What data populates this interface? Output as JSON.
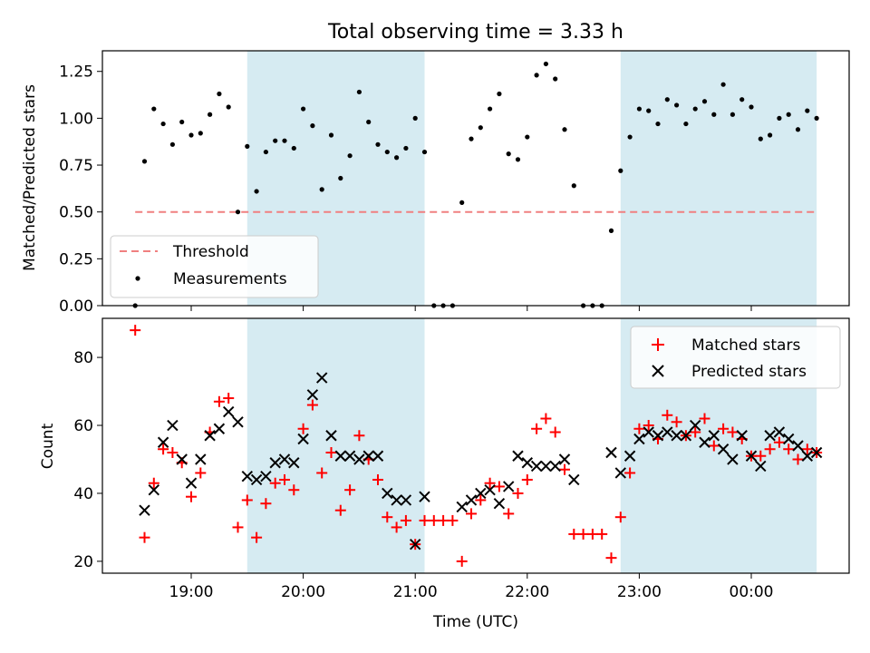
{
  "chart_data": [
    {
      "type": "scatter",
      "title": "Total observing time = 3.33 h",
      "ylabel": "Matched/Predicted stars",
      "xlabel": "",
      "ylim": [
        0,
        1.36
      ],
      "yticks": [
        0.0,
        0.25,
        0.5,
        0.75,
        1.0,
        1.25
      ],
      "ytick_labels": [
        "0.00",
        "0.25",
        "0.50",
        "0.75",
        "1.00",
        "1.25"
      ],
      "legend_position": "lower-left",
      "threshold": {
        "name": "Threshold",
        "value": 0.5,
        "color": "#f08080"
      },
      "series": [
        {
          "name": "Measurements",
          "color": "#000000",
          "x": [
            "18:30",
            "18:35",
            "18:40",
            "18:45",
            "18:50",
            "18:55",
            "19:00",
            "19:05",
            "19:10",
            "19:15",
            "19:20",
            "19:25",
            "19:30",
            "19:35",
            "19:40",
            "19:45",
            "19:50",
            "19:55",
            "20:00",
            "20:05",
            "20:10",
            "20:15",
            "20:20",
            "20:25",
            "20:30",
            "20:35",
            "20:40",
            "20:45",
            "20:50",
            "20:55",
            "21:00",
            "21:05",
            "21:10",
            "21:15",
            "21:20",
            "21:25",
            "21:30",
            "21:35",
            "21:40",
            "21:45",
            "21:50",
            "21:55",
            "22:00",
            "22:05",
            "22:10",
            "22:15",
            "22:20",
            "22:25",
            "22:30",
            "22:35",
            "22:40",
            "22:45",
            "22:50",
            "22:55",
            "23:00",
            "23:05",
            "23:10",
            "23:15",
            "23:20",
            "23:25",
            "23:30",
            "23:35",
            "23:40",
            "23:45",
            "23:50",
            "23:55",
            "00:00",
            "00:05",
            "00:10",
            "00:15",
            "00:20",
            "00:25",
            "00:30",
            "00:35"
          ],
          "y": [
            0.0,
            0.77,
            1.05,
            0.97,
            0.86,
            0.98,
            0.91,
            0.92,
            1.02,
            1.13,
            1.06,
            0.5,
            0.85,
            0.61,
            0.82,
            0.88,
            0.88,
            0.84,
            1.05,
            0.96,
            0.62,
            0.91,
            0.68,
            0.8,
            1.14,
            0.98,
            0.86,
            0.82,
            0.79,
            0.84,
            1.0,
            0.82,
            0.0,
            0.0,
            0.0,
            0.55,
            0.89,
            0.95,
            1.05,
            1.13,
            0.81,
            0.78,
            0.9,
            1.23,
            1.29,
            1.21,
            0.94,
            0.64,
            0.0,
            0.0,
            0.0,
            0.4,
            0.72,
            0.9,
            1.05,
            1.04,
            0.97,
            1.1,
            1.07,
            0.97,
            1.05,
            1.09,
            1.02,
            1.18,
            1.02,
            1.1,
            1.06,
            0.89,
            0.91,
            1.0,
            1.02,
            0.94,
            1.04,
            1.0
          ]
        }
      ]
    },
    {
      "type": "scatter",
      "title": "",
      "xlabel": "Time (UTC)",
      "ylabel": "Count",
      "ylim": [
        16.5,
        91.5
      ],
      "yticks": [
        20,
        40,
        60,
        80
      ],
      "ytick_labels": [
        "20",
        "40",
        "60",
        "80"
      ],
      "xticks": [
        "19:00",
        "20:00",
        "21:00",
        "22:00",
        "23:00",
        "00:00"
      ],
      "xtick_labels": [
        "19:00",
        "20:00",
        "21:00",
        "22:00",
        "23:00",
        "00:00"
      ],
      "legend_position": "upper-right",
      "series": [
        {
          "name": "Matched stars",
          "marker": "+",
          "color": "#ff0000",
          "x": [
            "18:30",
            "18:35",
            "18:40",
            "18:45",
            "18:50",
            "18:55",
            "19:00",
            "19:05",
            "19:10",
            "19:15",
            "19:20",
            "19:25",
            "19:30",
            "19:35",
            "19:40",
            "19:45",
            "19:50",
            "19:55",
            "20:00",
            "20:05",
            "20:10",
            "20:15",
            "20:20",
            "20:25",
            "20:30",
            "20:35",
            "20:40",
            "20:45",
            "20:50",
            "20:55",
            "21:00",
            "21:05",
            "21:10",
            "21:15",
            "21:20",
            "21:25",
            "21:30",
            "21:35",
            "21:40",
            "21:45",
            "21:50",
            "21:55",
            "22:00",
            "22:05",
            "22:10",
            "22:15",
            "22:20",
            "22:25",
            "22:30",
            "22:35",
            "22:40",
            "22:45",
            "22:50",
            "22:55",
            "23:00",
            "23:05",
            "23:10",
            "23:15",
            "23:20",
            "23:25",
            "23:30",
            "23:35",
            "23:40",
            "23:45",
            "23:50",
            "23:55",
            "00:00",
            "00:05",
            "00:10",
            "00:15",
            "00:20",
            "00:25",
            "00:30",
            "00:35"
          ],
          "y": [
            88,
            27,
            43,
            53,
            52,
            49,
            39,
            46,
            58,
            67,
            68,
            30,
            38,
            27,
            37,
            43,
            44,
            41,
            59,
            66,
            46,
            52,
            35,
            41,
            57,
            50,
            44,
            33,
            30,
            32,
            25,
            32,
            32,
            32,
            32,
            20,
            34,
            38,
            43,
            42,
            34,
            40,
            44,
            59,
            62,
            58,
            47,
            28,
            28,
            28,
            28,
            21,
            33,
            46,
            59,
            60,
            56,
            63,
            61,
            57,
            58,
            62,
            54,
            59,
            58,
            56,
            51,
            51,
            53,
            55,
            53,
            50,
            53,
            52
          ]
        },
        {
          "name": "Predicted stars",
          "marker": "x",
          "color": "#000000",
          "x": [
            "18:30",
            "18:35",
            "18:40",
            "18:45",
            "18:50",
            "18:55",
            "19:00",
            "19:05",
            "19:10",
            "19:15",
            "19:20",
            "19:25",
            "19:30",
            "19:35",
            "19:40",
            "19:45",
            "19:50",
            "19:55",
            "20:00",
            "20:05",
            "20:10",
            "20:15",
            "20:20",
            "20:25",
            "20:30",
            "20:35",
            "20:40",
            "20:45",
            "20:50",
            "20:55",
            "21:00",
            "21:05",
            "21:10",
            "21:15",
            "21:20",
            "21:25",
            "21:30",
            "21:35",
            "21:40",
            "21:45",
            "21:50",
            "21:55",
            "22:00",
            "22:05",
            "22:10",
            "22:15",
            "22:20",
            "22:25",
            "22:30",
            "22:35",
            "22:40",
            "22:45",
            "22:50",
            "22:55",
            "23:00",
            "23:05",
            "23:10",
            "23:15",
            "23:20",
            "23:25",
            "23:30",
            "23:35",
            "23:40",
            "23:45",
            "23:50",
            "23:55",
            "00:00",
            "00:05",
            "00:10",
            "00:15",
            "00:20",
            "00:25",
            "00:30",
            "00:35"
          ],
          "y": [
            null,
            35,
            41,
            55,
            60,
            50,
            43,
            50,
            57,
            59,
            64,
            61,
            45,
            44,
            45,
            49,
            50,
            49,
            56,
            69,
            74,
            57,
            51,
            51,
            50,
            51,
            51,
            40,
            38,
            38,
            25,
            39,
            null,
            null,
            null,
            36,
            38,
            40,
            41,
            37,
            42,
            51,
            49,
            48,
            48,
            48,
            50,
            44,
            null,
            null,
            null,
            52,
            46,
            51,
            56,
            58,
            57,
            58,
            57,
            57,
            60,
            55,
            57,
            53,
            50,
            57,
            51,
            48,
            57,
            58,
            56,
            54,
            51,
            52
          ]
        }
      ]
    }
  ],
  "x_axis": {
    "xlabel": "Time (UTC)",
    "xtick_labels": [
      "19:00",
      "20:00",
      "21:00",
      "22:00",
      "23:00",
      "00:00"
    ]
  },
  "observing_windows": [
    {
      "start": "19:30",
      "end": "21:05",
      "color": "#add8e6"
    },
    {
      "start": "22:50",
      "end": "00:35",
      "color": "#add8e6"
    }
  ]
}
